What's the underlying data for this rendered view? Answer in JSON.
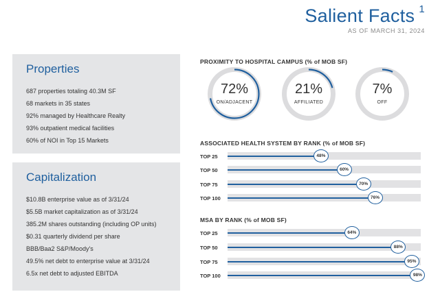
{
  "header": {
    "title": "Salient Facts",
    "superscript": "1",
    "subtitle": "AS OF MARCH 31, 2024"
  },
  "properties": {
    "heading": "Properties",
    "items": [
      "687 properties totaling 40.3M SF",
      "68 markets in 35 states",
      "92% managed by Healthcare Realty",
      "93% outpatient medical facilities",
      "60% of NOI in Top 15 Markets"
    ]
  },
  "capitalization": {
    "heading": "Capitalization",
    "items": [
      "$10.8B enterprise value as of 3/31/24",
      "$5.5B market capitalization as of 3/31/24",
      "385.2M shares outstanding (including OP units)",
      "$0.31 quarterly dividend per share",
      "BBB/Baa2 S&P/Moody's",
      "49.5% net debt to enterprise value at 3/31/24",
      "6.5x net debt to adjusted EBITDA"
    ]
  },
  "proximity": {
    "title": "PROXIMITY TO HOSPITAL CAMPUS (% of MOB SF)",
    "donuts": [
      {
        "value": 72,
        "pct": "72%",
        "label": "ON/ADJACENT"
      },
      {
        "value": 21,
        "pct": "21%",
        "label": "AFFILIATED"
      },
      {
        "value": 7,
        "pct": "7%",
        "label": "OFF"
      }
    ]
  },
  "health_system": {
    "title": "ASSOCIATED HEALTH SYSTEM BY RANK (% of MOB SF)",
    "rows": [
      {
        "label": "TOP 25",
        "value": 48,
        "text": "48%"
      },
      {
        "label": "TOP 50",
        "value": 60,
        "text": "60%"
      },
      {
        "label": "TOP 75",
        "value": 70,
        "text": "70%"
      },
      {
        "label": "TOP 100",
        "value": 76,
        "text": "76%"
      }
    ]
  },
  "msa": {
    "title": "MSA BY RANK (% of MOB SF)",
    "rows": [
      {
        "label": "TOP 25",
        "value": 64,
        "text": "64%"
      },
      {
        "label": "TOP 50",
        "value": 88,
        "text": "88%"
      },
      {
        "label": "TOP 75",
        "value": 95,
        "text": "95%"
      },
      {
        "label": "TOP 100",
        "value": 98,
        "text": "98%"
      }
    ]
  },
  "chart_data": [
    {
      "type": "pie",
      "title": "PROXIMITY TO HOSPITAL CAMPUS (% of MOB SF)",
      "categories": [
        "ON/ADJACENT",
        "AFFILIATED",
        "OFF"
      ],
      "values": [
        72,
        21,
        7
      ]
    },
    {
      "type": "bar",
      "title": "ASSOCIATED HEALTH SYSTEM BY RANK (% of MOB SF)",
      "categories": [
        "TOP 25",
        "TOP 50",
        "TOP 75",
        "TOP 100"
      ],
      "values": [
        48,
        60,
        70,
        76
      ],
      "xlim": [
        0,
        100
      ]
    },
    {
      "type": "bar",
      "title": "MSA BY RANK (% of MOB SF)",
      "categories": [
        "TOP 25",
        "TOP 50",
        "TOP 75",
        "TOP 100"
      ],
      "values": [
        64,
        88,
        95,
        98
      ],
      "xlim": [
        0,
        100
      ]
    }
  ],
  "colors": {
    "accent": "#1f5f9e",
    "ring_track": "#dcdcde",
    "bar_track": "#e2e2e4",
    "panel": "#e4e5e7"
  }
}
